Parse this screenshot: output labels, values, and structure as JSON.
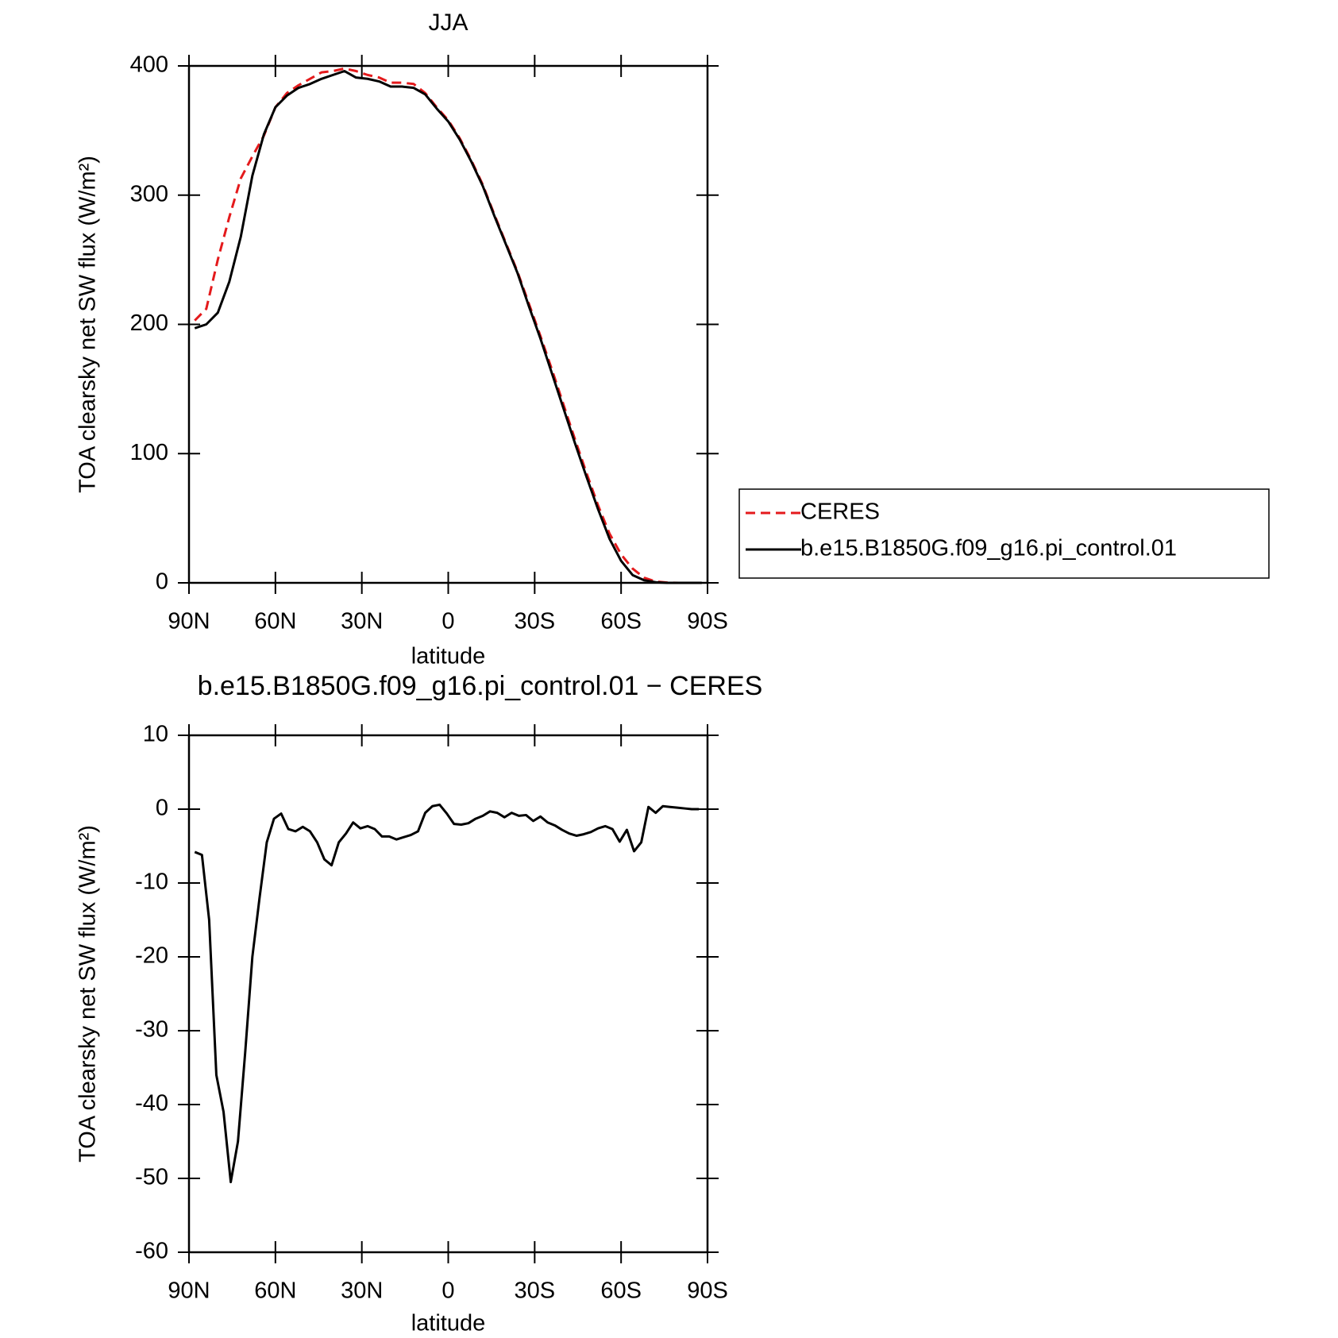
{
  "chart_data": [
    {
      "type": "line",
      "title": "JJA",
      "xlabel": "latitude",
      "ylabel": "TOA clearsky net SW flux (W/m²)",
      "x": [
        88,
        84,
        80,
        76,
        72,
        68,
        64,
        60,
        56,
        52,
        48,
        44,
        40,
        36,
        32,
        28,
        24,
        20,
        16,
        12,
        8,
        4,
        0,
        -4,
        -8,
        -12,
        -16,
        -20,
        -24,
        -28,
        -32,
        -36,
        -40,
        -44,
        -48,
        -52,
        -56,
        -60,
        -64,
        -68,
        -72,
        -76,
        -80,
        -84,
        -88
      ],
      "series": [
        {
          "name": "CERES",
          "color": "#e41a1c",
          "linestyle": "dashed",
          "values": [
            203,
            212,
            250,
            283,
            313,
            330,
            346,
            368,
            379,
            385,
            390,
            395,
            396,
            398,
            396,
            393,
            391,
            387,
            387,
            386,
            379,
            368,
            358,
            344,
            327,
            308,
            285,
            263,
            241,
            216,
            191,
            165,
            138,
            111,
            85,
            60,
            38,
            22,
            11,
            4,
            1,
            0.2,
            0,
            0,
            0
          ]
        },
        {
          "name": "b.e15.B1850G.f09_g16.pi_control.01",
          "color": "#000000",
          "linestyle": "solid",
          "values": [
            197,
            200,
            209,
            233,
            268,
            315,
            347,
            368,
            377,
            383,
            386,
            390,
            393,
            396,
            391,
            390,
            388,
            384,
            384,
            383,
            378,
            367,
            357,
            343,
            326,
            307,
            284,
            262,
            240,
            214,
            189,
            162,
            135,
            108,
            82,
            57,
            34,
            17,
            6,
            2,
            0.5,
            0,
            0,
            0,
            0
          ]
        }
      ],
      "xlim": [
        90,
        -90
      ],
      "xticks": [
        {
          "value": 90,
          "label": "90N"
        },
        {
          "value": 60,
          "label": "60N"
        },
        {
          "value": 30,
          "label": "30N"
        },
        0,
        {
          "value": -30,
          "label": "30S"
        },
        {
          "value": -60,
          "label": "60S"
        },
        {
          "value": -90,
          "label": "90S"
        }
      ],
      "ylim": [
        0,
        400
      ],
      "yticks": [
        0,
        100,
        200,
        300,
        400
      ],
      "legend": "right"
    },
    {
      "type": "line",
      "title": "b.e15.B1850G.f09_g16.pi_control.01 − CERES",
      "xlabel": "latitude",
      "ylabel": "TOA clearsky net SW flux (W/m²)",
      "x": [
        88,
        85.5,
        83,
        80.5,
        78,
        75.5,
        73,
        70.5,
        68,
        65.5,
        63,
        60.5,
        58,
        55.5,
        53,
        50.5,
        48,
        45.5,
        43,
        40.5,
        38,
        35.5,
        33,
        30.5,
        28,
        25.5,
        23,
        20.5,
        18,
        15.5,
        13,
        10.5,
        8,
        5.5,
        3,
        0.5,
        -2,
        -4.5,
        -7,
        -9.5,
        -12,
        -14.5,
        -17,
        -19.5,
        -22,
        -24.5,
        -27,
        -29.5,
        -32,
        -34.5,
        -37,
        -39.5,
        -42,
        -44.5,
        -47,
        -49.5,
        -52,
        -54.5,
        -57,
        -59.5,
        -62,
        -64.5,
        -67,
        -69.5,
        -72,
        -74.5,
        -77,
        -79.5,
        -82,
        -84.5,
        -87
      ],
      "series": [
        {
          "color": "#000000",
          "linestyle": "solid",
          "values": [
            -5.8,
            -6.2,
            -15,
            -36,
            -41,
            -50.5,
            -45,
            -33,
            -20,
            -12,
            -4.5,
            -1.3,
            -0.6,
            -2.7,
            -3,
            -2.4,
            -3,
            -4.5,
            -6.8,
            -7.6,
            -4.5,
            -3.3,
            -1.8,
            -2.6,
            -2.3,
            -2.7,
            -3.7,
            -3.7,
            -4.1,
            -3.8,
            -3.5,
            -3,
            -0.5,
            0.4,
            0.6,
            -0.6,
            -2,
            -2.1,
            -1.9,
            -1.3,
            -0.9,
            -0.3,
            -0.5,
            -1.1,
            -0.5,
            -0.9,
            -0.8,
            -1.6,
            -1,
            -1.8,
            -2.2,
            -2.8,
            -3.3,
            -3.6,
            -3.4,
            -3.1,
            -2.6,
            -2.3,
            -2.7,
            -4.4,
            -2.8,
            -5.7,
            -4.5,
            0.3,
            -0.5,
            0.4,
            0.3,
            0.2,
            0.1,
            0,
            0
          ]
        }
      ],
      "xlim": [
        90,
        -90
      ],
      "xticks": [
        {
          "value": 90,
          "label": "90N"
        },
        {
          "value": 60,
          "label": "60N"
        },
        {
          "value": 30,
          "label": "30N"
        },
        0,
        {
          "value": -30,
          "label": "30S"
        },
        {
          "value": -60,
          "label": "60S"
        },
        {
          "value": -90,
          "label": "90S"
        }
      ],
      "ylim": [
        -60,
        10
      ],
      "yticks": [
        -60,
        -50,
        -40,
        -30,
        -20,
        -10,
        0,
        10
      ]
    }
  ]
}
